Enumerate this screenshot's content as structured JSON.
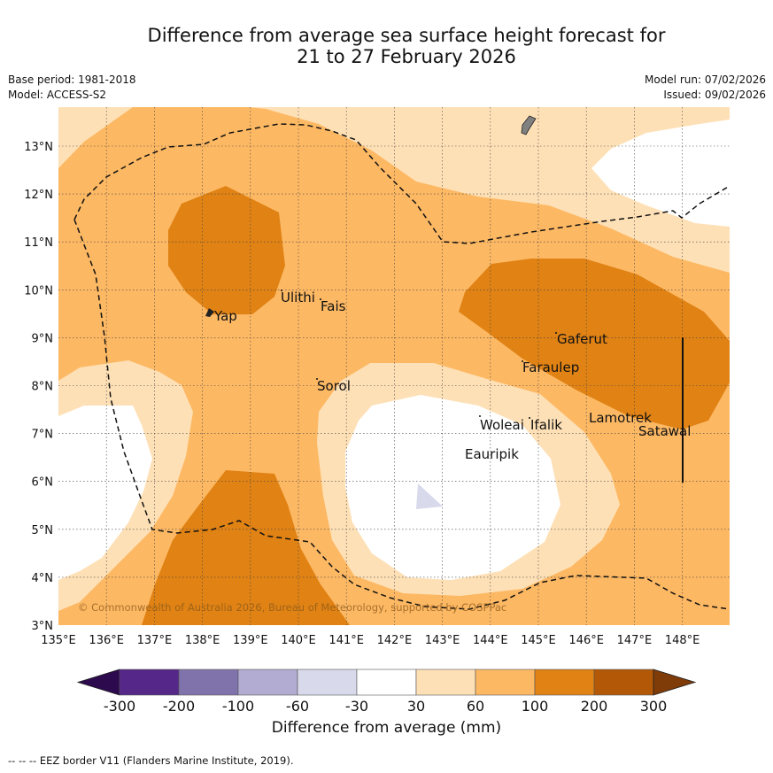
{
  "title_line1": "Difference from average sea surface height forecast for",
  "title_line2": "21 to 27 February 2026",
  "meta_left": [
    "Base period: 1981-2018",
    "Model: ACCESS-S2"
  ],
  "meta_right": [
    "Model run: 07/02/2026",
    "Issued: 09/02/2026"
  ],
  "lat_labels": [
    "13°N",
    "12°N",
    "11°N",
    "10°N",
    "9°N",
    "8°N",
    "7°N",
    "6°N",
    "5°N",
    "4°N",
    "3°N"
  ],
  "lon_labels": [
    "135°E",
    "136°E",
    "137°E",
    "138°E",
    "139°E",
    "140°E",
    "141°E",
    "142°E",
    "143°E",
    "144°E",
    "145°E",
    "146°E",
    "147°E",
    "148°E"
  ],
  "places": [
    "Yap",
    "Ulithi",
    "Fais",
    "Sorol",
    "Gaferut",
    "Faraulep",
    "Woleai",
    "Ifalik",
    "Lamotrek",
    "Satawal",
    "Eauripik"
  ],
  "copyright": "© Commonwealth of Australia 2026, Bureau of Meteorology, supported by COSPPac",
  "colorbar": {
    "ticks": [
      "-300",
      "-200",
      "-100",
      "-60",
      "-30",
      "30",
      "60",
      "100",
      "200",
      "300"
    ],
    "colors": [
      "#2d0a4e",
      "#542788",
      "#8073ac",
      "#b2abd2",
      "#d8daeb",
      "#ffffff",
      "#fee0b6",
      "#fdb863",
      "#e08214",
      "#b35806",
      "#7f3b08"
    ],
    "title": "Difference from average (mm)"
  },
  "eez_note": "-- -- -- EEZ border V11 (Flanders Marine Institute, 2019)."
}
